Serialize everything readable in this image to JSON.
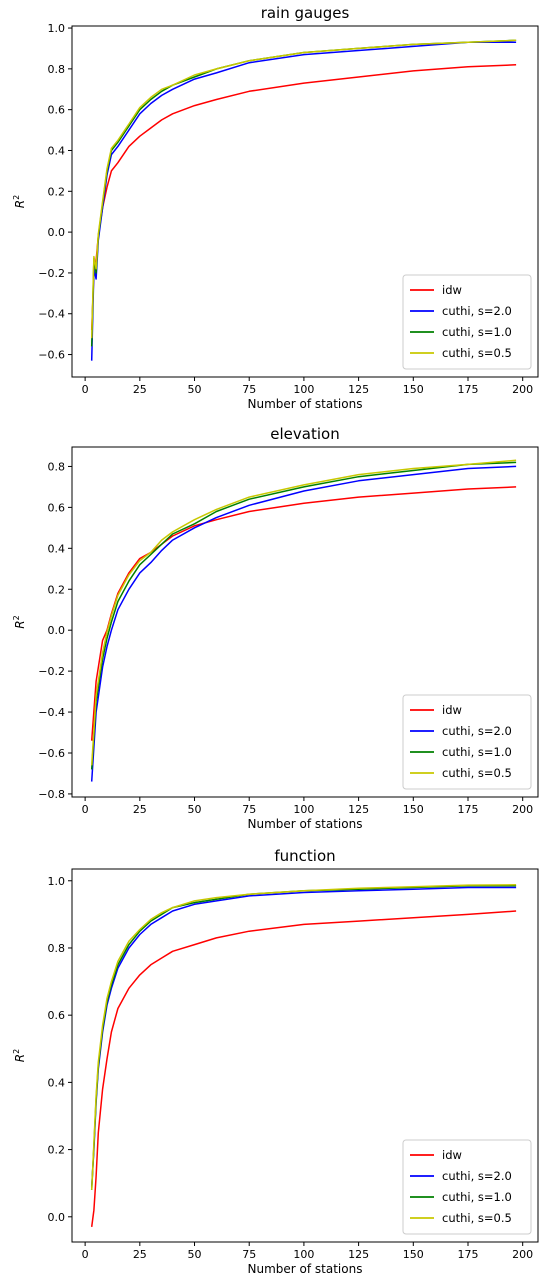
{
  "chart_data": [
    {
      "type": "line",
      "title": "rain gauges",
      "xlabel": "Number of stations",
      "ylabel": "R",
      "ylabel_superscript": "2",
      "xlim": [
        -6,
        207
      ],
      "ylim": [
        -0.71,
        1.01
      ],
      "xticks": [
        0,
        25,
        50,
        75,
        100,
        125,
        150,
        175,
        200
      ],
      "yticks": [
        -0.6,
        -0.4,
        -0.2,
        0.0,
        0.2,
        0.4,
        0.6,
        0.8,
        1.0
      ],
      "ytick_labels": [
        "−0.6",
        "−0.4",
        "−0.2",
        "0.0",
        "0.2",
        "0.4",
        "0.6",
        "0.8",
        "1.0"
      ],
      "grid": false,
      "legend_position": "lower-right",
      "series": [
        {
          "name": "idw",
          "color": "#ff0000",
          "x": [
            3,
            4,
            5,
            6,
            8,
            10,
            12,
            15,
            20,
            25,
            30,
            35,
            40,
            50,
            60,
            75,
            100,
            125,
            150,
            175,
            197
          ],
          "y": [
            -0.48,
            -0.2,
            -0.14,
            -0.02,
            0.12,
            0.22,
            0.3,
            0.34,
            0.42,
            0.47,
            0.51,
            0.55,
            0.58,
            0.62,
            0.65,
            0.69,
            0.73,
            0.76,
            0.79,
            0.81,
            0.82
          ]
        },
        {
          "name": "cuthi, s=2.0",
          "color": "#0000ff",
          "x": [
            3,
            4,
            5,
            6,
            8,
            10,
            12,
            15,
            20,
            25,
            30,
            35,
            40,
            50,
            60,
            75,
            100,
            125,
            150,
            175,
            197
          ],
          "y": [
            -0.63,
            -0.18,
            -0.23,
            -0.04,
            0.12,
            0.28,
            0.38,
            0.42,
            0.5,
            0.58,
            0.63,
            0.67,
            0.7,
            0.75,
            0.78,
            0.83,
            0.87,
            0.89,
            0.91,
            0.93,
            0.93
          ]
        },
        {
          "name": "cuthi, s=1.0",
          "color": "#008000",
          "x": [
            3,
            4,
            5,
            6,
            8,
            10,
            12,
            15,
            20,
            25,
            30,
            35,
            40,
            50,
            60,
            75,
            100,
            125,
            150,
            175,
            197
          ],
          "y": [
            -0.56,
            -0.13,
            -0.2,
            -0.02,
            0.14,
            0.3,
            0.4,
            0.44,
            0.52,
            0.6,
            0.65,
            0.69,
            0.72,
            0.76,
            0.8,
            0.84,
            0.88,
            0.9,
            0.92,
            0.93,
            0.94
          ]
        },
        {
          "name": "cuthi, s=0.5",
          "color": "#c8c800",
          "x": [
            3,
            4,
            5,
            6,
            8,
            10,
            12,
            15,
            20,
            25,
            30,
            35,
            40,
            50,
            60,
            75,
            100,
            125,
            150,
            175,
            197
          ],
          "y": [
            -0.52,
            -0.12,
            -0.18,
            -0.01,
            0.15,
            0.31,
            0.41,
            0.45,
            0.53,
            0.61,
            0.66,
            0.7,
            0.72,
            0.77,
            0.8,
            0.84,
            0.88,
            0.9,
            0.92,
            0.93,
            0.94
          ]
        }
      ]
    },
    {
      "type": "line",
      "title": "elevation",
      "xlabel": "Number of stations",
      "ylabel": "R",
      "ylabel_superscript": "2",
      "xlim": [
        -6,
        207
      ],
      "ylim": [
        -0.815,
        0.895
      ],
      "xticks": [
        0,
        25,
        50,
        75,
        100,
        125,
        150,
        175,
        200
      ],
      "yticks": [
        -0.8,
        -0.6,
        -0.4,
        -0.2,
        0.0,
        0.2,
        0.4,
        0.6,
        0.8
      ],
      "ytick_labels": [
        "−0.8",
        "−0.6",
        "−0.4",
        "−0.2",
        "0.0",
        "0.2",
        "0.4",
        "0.6",
        "0.8"
      ],
      "grid": false,
      "legend_position": "lower-right",
      "series": [
        {
          "name": "idw",
          "color": "#ff0000",
          "x": [
            3,
            5,
            8,
            10,
            12,
            15,
            20,
            25,
            30,
            35,
            40,
            50,
            60,
            75,
            100,
            125,
            150,
            175,
            197
          ],
          "y": [
            -0.54,
            -0.25,
            -0.05,
            0.0,
            0.08,
            0.18,
            0.28,
            0.35,
            0.38,
            0.42,
            0.46,
            0.51,
            0.54,
            0.58,
            0.62,
            0.65,
            0.67,
            0.69,
            0.7
          ]
        },
        {
          "name": "cuthi, s=2.0",
          "color": "#0000ff",
          "x": [
            3,
            5,
            8,
            10,
            12,
            15,
            20,
            25,
            30,
            35,
            40,
            50,
            60,
            75,
            100,
            125,
            150,
            175,
            197
          ],
          "y": [
            -0.74,
            -0.4,
            -0.18,
            -0.08,
            0.0,
            0.1,
            0.2,
            0.28,
            0.33,
            0.39,
            0.44,
            0.5,
            0.55,
            0.61,
            0.68,
            0.73,
            0.76,
            0.79,
            0.8
          ]
        },
        {
          "name": "cuthi, s=1.0",
          "color": "#008000",
          "x": [
            3,
            5,
            8,
            10,
            12,
            15,
            20,
            25,
            30,
            35,
            40,
            50,
            60,
            75,
            100,
            125,
            150,
            175,
            197
          ],
          "y": [
            -0.68,
            -0.35,
            -0.14,
            -0.04,
            0.04,
            0.14,
            0.24,
            0.32,
            0.37,
            0.42,
            0.47,
            0.52,
            0.58,
            0.64,
            0.7,
            0.75,
            0.78,
            0.81,
            0.82
          ]
        },
        {
          "name": "cuthi, s=0.5",
          "color": "#c8c800",
          "x": [
            3,
            5,
            8,
            10,
            12,
            15,
            20,
            25,
            30,
            35,
            40,
            50,
            60,
            75,
            100,
            125,
            150,
            175,
            197
          ],
          "y": [
            -0.66,
            -0.32,
            -0.11,
            -0.01,
            0.07,
            0.17,
            0.27,
            0.34,
            0.38,
            0.44,
            0.48,
            0.54,
            0.59,
            0.65,
            0.71,
            0.76,
            0.79,
            0.81,
            0.83
          ]
        }
      ]
    },
    {
      "type": "line",
      "title": "function",
      "xlabel": "Number of stations",
      "ylabel": "R",
      "ylabel_superscript": "2",
      "xlim": [
        -6,
        207
      ],
      "ylim": [
        -0.075,
        1.035
      ],
      "xticks": [
        0,
        25,
        50,
        75,
        100,
        125,
        150,
        175,
        200
      ],
      "yticks": [
        0.0,
        0.2,
        0.4,
        0.6,
        0.8,
        1.0
      ],
      "ytick_labels": [
        "0.0",
        "0.2",
        "0.4",
        "0.6",
        "0.8",
        "1.0"
      ],
      "grid": false,
      "legend_position": "lower-right",
      "series": [
        {
          "name": "idw",
          "color": "#ff0000",
          "x": [
            3,
            4,
            5,
            6,
            8,
            10,
            12,
            15,
            20,
            25,
            30,
            35,
            40,
            50,
            60,
            75,
            100,
            125,
            150,
            175,
            197
          ],
          "y": [
            -0.03,
            0.02,
            0.12,
            0.25,
            0.38,
            0.47,
            0.55,
            0.62,
            0.68,
            0.72,
            0.75,
            0.77,
            0.79,
            0.81,
            0.83,
            0.85,
            0.87,
            0.88,
            0.89,
            0.9,
            0.91
          ]
        },
        {
          "name": "cuthi, s=2.0",
          "color": "#0000ff",
          "x": [
            3,
            4,
            5,
            6,
            8,
            10,
            12,
            15,
            20,
            25,
            30,
            35,
            40,
            50,
            60,
            75,
            100,
            125,
            150,
            175,
            197
          ],
          "y": [
            0.09,
            0.2,
            0.34,
            0.44,
            0.55,
            0.63,
            0.68,
            0.74,
            0.8,
            0.84,
            0.87,
            0.89,
            0.91,
            0.93,
            0.94,
            0.955,
            0.965,
            0.97,
            0.975,
            0.98,
            0.98
          ]
        },
        {
          "name": "cuthi, s=1.0",
          "color": "#008000",
          "x": [
            3,
            4,
            5,
            6,
            8,
            10,
            12,
            15,
            20,
            25,
            30,
            35,
            40,
            50,
            60,
            75,
            100,
            125,
            150,
            175,
            197
          ],
          "y": [
            0.08,
            0.21,
            0.35,
            0.45,
            0.56,
            0.64,
            0.69,
            0.75,
            0.81,
            0.85,
            0.88,
            0.9,
            0.92,
            0.935,
            0.945,
            0.96,
            0.97,
            0.975,
            0.98,
            0.985,
            0.985
          ]
        },
        {
          "name": "cuthi, s=0.5",
          "color": "#c8c800",
          "x": [
            3,
            4,
            5,
            6,
            8,
            10,
            12,
            15,
            20,
            25,
            30,
            35,
            40,
            50,
            60,
            75,
            100,
            125,
            150,
            175,
            197
          ],
          "y": [
            0.08,
            0.22,
            0.36,
            0.46,
            0.57,
            0.65,
            0.7,
            0.76,
            0.82,
            0.855,
            0.885,
            0.905,
            0.92,
            0.94,
            0.95,
            0.96,
            0.97,
            0.978,
            0.982,
            0.987,
            0.988
          ]
        }
      ]
    }
  ]
}
